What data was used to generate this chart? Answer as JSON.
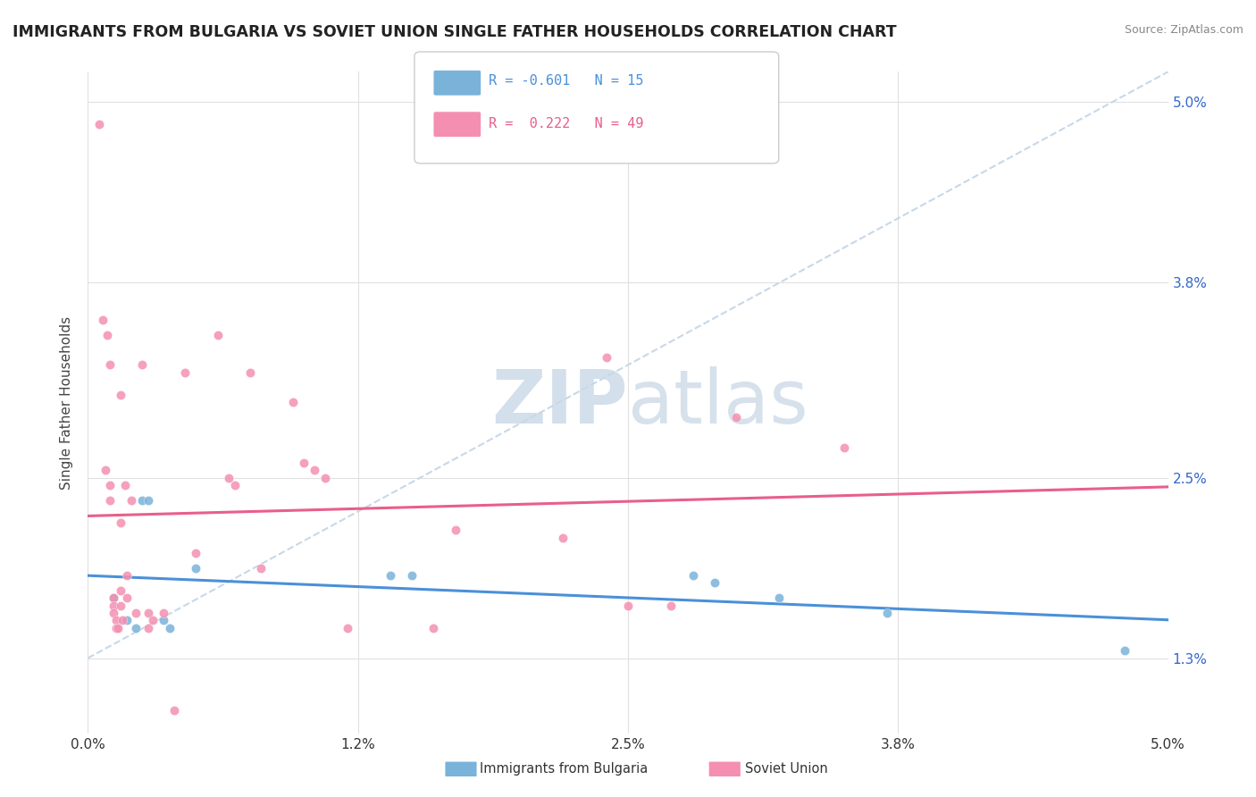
{
  "title": "IMMIGRANTS FROM BULGARIA VS SOVIET UNION SINGLE FATHER HOUSEHOLDS CORRELATION CHART",
  "source": "Source: ZipAtlas.com",
  "ylabel": "Single Father Households",
  "watermark_zip": "ZIP",
  "watermark_atlas": "atlas",
  "legend_labels_bottom": [
    "Immigrants from Bulgaria",
    "Soviet Union"
  ],
  "bulgaria_color": "#7ab3d9",
  "soviet_color": "#f48fb1",
  "bulgaria_R": -0.601,
  "bulgaria_N": 15,
  "soviet_R": 0.222,
  "soviet_N": 49,
  "xlim": [
    0.0,
    5.0
  ],
  "ylim": [
    0.8,
    5.2
  ],
  "yticks": [
    1.3,
    2.5,
    3.8,
    5.0
  ],
  "xticks": [
    0.0,
    1.25,
    2.5,
    3.75,
    5.0
  ],
  "bulgaria_scatter": [
    [
      0.12,
      1.7
    ],
    [
      0.18,
      1.55
    ],
    [
      0.22,
      1.5
    ],
    [
      0.25,
      2.35
    ],
    [
      0.28,
      2.35
    ],
    [
      0.35,
      1.55
    ],
    [
      0.38,
      1.5
    ],
    [
      0.5,
      1.9
    ],
    [
      1.4,
      1.85
    ],
    [
      1.5,
      1.85
    ],
    [
      2.8,
      1.85
    ],
    [
      2.9,
      1.8
    ],
    [
      3.2,
      1.7
    ],
    [
      3.7,
      1.6
    ],
    [
      4.8,
      1.35
    ]
  ],
  "soviet_scatter": [
    [
      0.05,
      4.85
    ],
    [
      0.07,
      3.55
    ],
    [
      0.08,
      2.55
    ],
    [
      0.09,
      3.45
    ],
    [
      0.1,
      2.45
    ],
    [
      0.1,
      3.25
    ],
    [
      0.1,
      2.35
    ],
    [
      0.12,
      1.7
    ],
    [
      0.12,
      1.65
    ],
    [
      0.12,
      1.6
    ],
    [
      0.13,
      1.55
    ],
    [
      0.13,
      1.5
    ],
    [
      0.14,
      1.5
    ],
    [
      0.15,
      3.05
    ],
    [
      0.15,
      2.2
    ],
    [
      0.15,
      1.75
    ],
    [
      0.15,
      1.65
    ],
    [
      0.16,
      1.55
    ],
    [
      0.17,
      2.45
    ],
    [
      0.18,
      1.85
    ],
    [
      0.18,
      1.7
    ],
    [
      0.2,
      2.35
    ],
    [
      0.22,
      1.6
    ],
    [
      0.25,
      3.25
    ],
    [
      0.28,
      1.6
    ],
    [
      0.28,
      1.5
    ],
    [
      0.3,
      1.55
    ],
    [
      0.35,
      1.6
    ],
    [
      0.4,
      0.95
    ],
    [
      0.45,
      3.2
    ],
    [
      0.5,
      2.0
    ],
    [
      0.6,
      3.45
    ],
    [
      0.65,
      2.5
    ],
    [
      0.68,
      2.45
    ],
    [
      0.75,
      3.2
    ],
    [
      0.8,
      1.9
    ],
    [
      0.95,
      3.0
    ],
    [
      1.0,
      2.6
    ],
    [
      1.05,
      2.55
    ],
    [
      1.1,
      2.5
    ],
    [
      1.2,
      1.5
    ],
    [
      1.6,
      1.5
    ],
    [
      1.7,
      2.15
    ],
    [
      2.2,
      2.1
    ],
    [
      2.4,
      3.3
    ],
    [
      2.5,
      1.65
    ],
    [
      2.7,
      1.65
    ],
    [
      3.0,
      2.9
    ],
    [
      3.5,
      2.7
    ]
  ],
  "bg_color": "#ffffff",
  "grid_color": "#e0e0e0",
  "trendline_bulgaria_color": "#4a90d9",
  "trendline_soviet_color": "#e85f8a",
  "trendline_dashed_color": "#c8d8e8",
  "ytick_color": "#3366cc",
  "xtick_color": "#333333"
}
